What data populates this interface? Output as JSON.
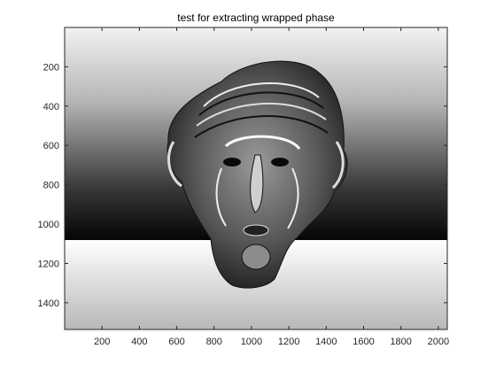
{
  "chart_data": {
    "type": "heatmap",
    "title": "test for extracting wrapped phase",
    "xlabel": "",
    "ylabel": "",
    "xlim": [
      0,
      2048
    ],
    "ylim": [
      1536,
      0
    ],
    "x_ticks": [
      200,
      400,
      600,
      800,
      1000,
      1200,
      1400,
      1600,
      1800,
      2000
    ],
    "y_ticks": [
      200,
      400,
      600,
      800,
      1000,
      1200,
      1400
    ],
    "colormap": "gray",
    "grid": false,
    "colorbar": false,
    "content": "wrapped phase map of a sculpted head with vertical gray gradient background",
    "background_bands": [
      {
        "y_from": 0,
        "y_to": 1080,
        "value_top": 0.95,
        "value_bottom": 0.0
      },
      {
        "y_from": 1080,
        "y_to": 1536,
        "value_top": 1.0,
        "value_bottom": 0.72
      }
    ],
    "colors": {
      "axis": "#262626",
      "frame": "#262626",
      "background": "#ffffff"
    }
  }
}
